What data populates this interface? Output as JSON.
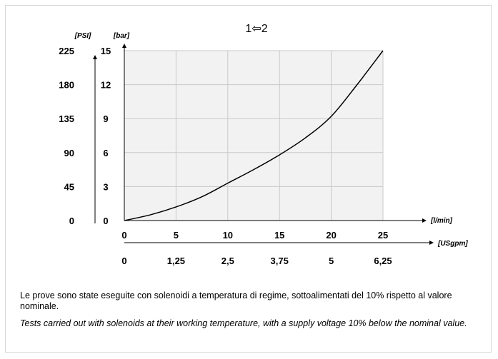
{
  "chart_data": {
    "type": "line",
    "title": "1⇦2",
    "grid": true,
    "y_primary": {
      "unit_label": "[bar]",
      "ticks": [
        "0",
        "3",
        "6",
        "9",
        "12",
        "15"
      ],
      "range": [
        0,
        15
      ]
    },
    "y_secondary": {
      "unit_label": "[PSI]",
      "ticks": [
        "0",
        "45",
        "90",
        "135",
        "180",
        "225"
      ],
      "range": [
        0,
        225
      ]
    },
    "x_primary": {
      "unit_label": "[l/min]",
      "ticks": [
        "0",
        "5",
        "10",
        "15",
        "20",
        "25"
      ],
      "range": [
        0,
        25
      ]
    },
    "x_secondary": {
      "unit_label": "[USgpm]",
      "ticks": [
        "0",
        "1,25",
        "2,5",
        "3,75",
        "5",
        "6,25"
      ],
      "range": [
        0,
        6.25
      ]
    },
    "series": [
      {
        "x": [
          0,
          2.5,
          5,
          7.5,
          10,
          12.5,
          15,
          17.5,
          20,
          22.5,
          25
        ],
        "y": [
          0,
          0.5,
          1.2,
          2.1,
          3.3,
          4.5,
          5.8,
          7.3,
          9.2,
          12.0,
          15.0
        ]
      }
    ],
    "line_color": "#000000"
  },
  "notes": {
    "italian": "Le prove sono state eseguite con solenoidi a temperatura di regime, sottoalimentati del 10% rispetto al valore nominale.",
    "english": "Tests carried out with solenoids at their working temperature, with a supply voltage 10% below the nominal value."
  }
}
